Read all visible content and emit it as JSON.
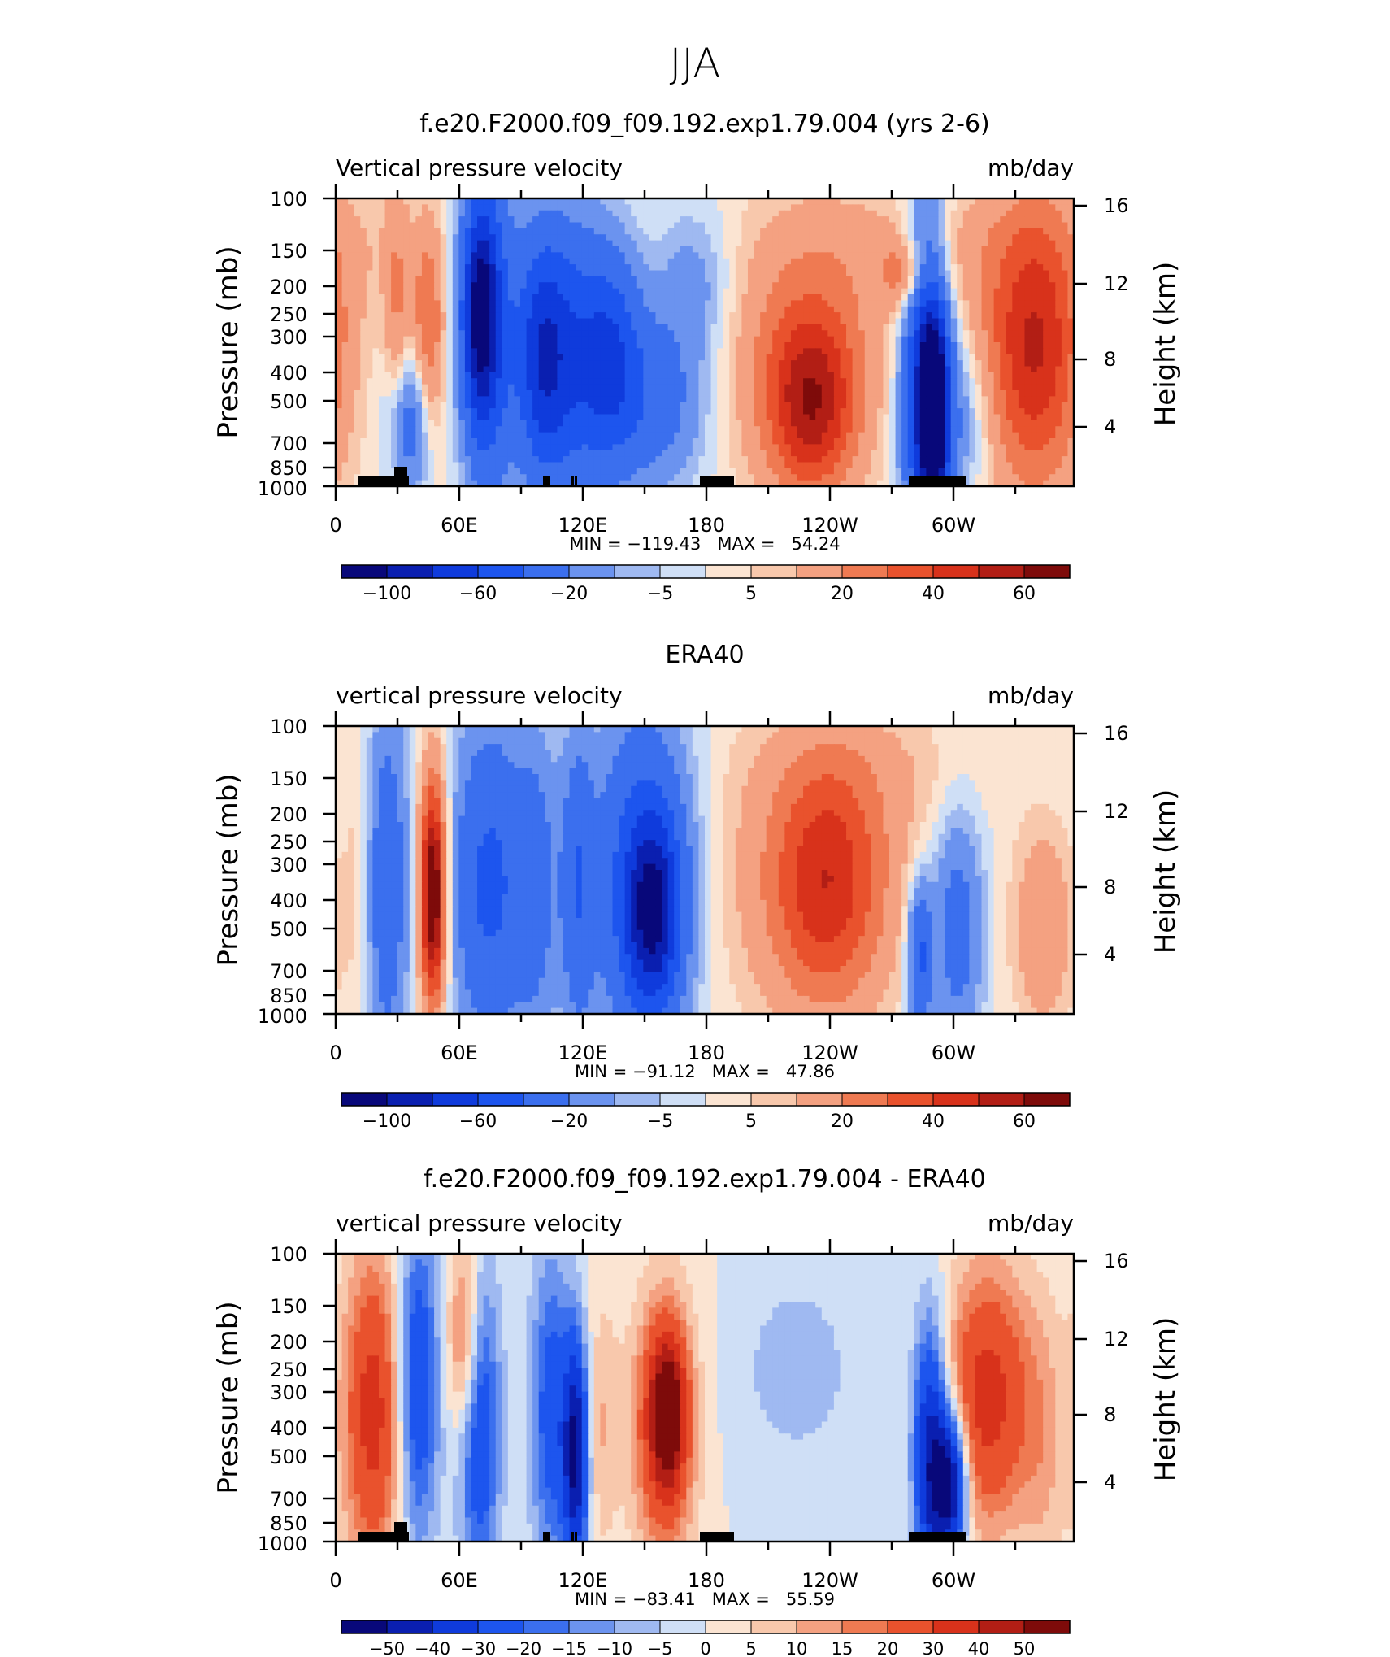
{
  "figure": {
    "main_title": "JJA"
  },
  "panels": [
    {
      "title": "f.e20.F2000.f09_f09.192.exp1.79.004 (yrs 2-6)",
      "left_string": "Vertical pressure velocity",
      "right_string": "mb/day",
      "left_axis_label": "Pressure (mb)",
      "right_axis_label": "Height (km)",
      "min_max_label": "MIN = −119.43   MAX =   54.24",
      "colorbar_labels": [
        "−100",
        "−60",
        "−20",
        "−5",
        "5",
        "20",
        "40",
        "60"
      ],
      "has_topo": true
    },
    {
      "title": "ERA40",
      "left_string": "vertical pressure velocity",
      "right_string": "mb/day",
      "left_axis_label": "Pressure (mb)",
      "right_axis_label": "Height (km)",
      "min_max_label": "MIN = −91.12   MAX =   47.86",
      "colorbar_labels": [
        "−100",
        "−60",
        "−20",
        "−5",
        "5",
        "20",
        "40",
        "60"
      ],
      "has_topo": false
    },
    {
      "title": "f.e20.F2000.f09_f09.192.exp1.79.004 - ERA40",
      "left_string": "vertical pressure velocity",
      "right_string": "mb/day",
      "left_axis_label": "Pressure (mb)",
      "right_axis_label": "Height (km)",
      "min_max_label": "MIN = −83.41   MAX =   55.59",
      "colorbar_labels": [
        "−50",
        "−40",
        "−30",
        "−20",
        "−15",
        "−10",
        "−5",
        "0",
        "5",
        "10",
        "15",
        "20",
        "30",
        "40",
        "50"
      ],
      "has_topo": true
    }
  ],
  "chart_data": [
    {
      "type": "heatmap",
      "title": "f.e20.F2000.f09_f09.192.exp1.79.004 (yrs 2-6)",
      "variable": "Vertical pressure velocity",
      "units": "mb/day",
      "x_ticks": [
        "0",
        "60E",
        "120E",
        "180",
        "120W",
        "60W"
      ],
      "x_range_deg": [
        0,
        360
      ],
      "y_ticks": [
        "100",
        "150",
        "200",
        "250",
        "300",
        "400",
        "500",
        "700",
        "850",
        "1000"
      ],
      "y_ticks_right": [
        "16",
        "12",
        "8",
        "4"
      ],
      "ylim": [
        1000,
        100
      ],
      "y_scale": "log-pressure",
      "min": -119.43,
      "max": 54.24,
      "colorbar_levels": [
        -100,
        -80,
        -60,
        -40,
        -20,
        -10,
        -5,
        0,
        5,
        10,
        20,
        30,
        40,
        50,
        60
      ]
    },
    {
      "type": "heatmap",
      "title": "ERA40",
      "variable": "vertical pressure velocity",
      "units": "mb/day",
      "x_ticks": [
        "0",
        "60E",
        "120E",
        "180",
        "120W",
        "60W"
      ],
      "x_range_deg": [
        0,
        360
      ],
      "y_ticks": [
        "100",
        "150",
        "200",
        "250",
        "300",
        "400",
        "500",
        "700",
        "850",
        "1000"
      ],
      "y_ticks_right": [
        "16",
        "12",
        "8",
        "4"
      ],
      "ylim": [
        1000,
        100
      ],
      "y_scale": "log-pressure",
      "min": -91.12,
      "max": 47.86,
      "colorbar_levels": [
        -100,
        -80,
        -60,
        -40,
        -20,
        -10,
        -5,
        0,
        5,
        10,
        20,
        30,
        40,
        50,
        60
      ]
    },
    {
      "type": "heatmap",
      "title": "f.e20.F2000.f09_f09.192.exp1.79.004 - ERA40",
      "variable": "vertical pressure velocity",
      "units": "mb/day",
      "x_ticks": [
        "0",
        "60E",
        "120E",
        "180",
        "120W",
        "60W"
      ],
      "x_range_deg": [
        0,
        360
      ],
      "y_ticks": [
        "100",
        "150",
        "200",
        "250",
        "300",
        "400",
        "500",
        "700",
        "850",
        "1000"
      ],
      "y_ticks_right": [
        "16",
        "12",
        "8",
        "4"
      ],
      "ylim": [
        1000,
        100
      ],
      "y_scale": "log-pressure",
      "min": -83.41,
      "max": 55.59,
      "colorbar_levels": [
        -50,
        -40,
        -30,
        -20,
        -15,
        -10,
        -5,
        0,
        5,
        10,
        15,
        20,
        30,
        40,
        50
      ]
    }
  ],
  "colors": {
    "palette": [
      "#08087a",
      "#0a1fb0",
      "#0f3bdc",
      "#1d55ee",
      "#3b6fee",
      "#6b93ef",
      "#9fb9f1",
      "#cfdff6",
      "#fbe4d2",
      "#f8c8ac",
      "#f4a181",
      "#ef7a52",
      "#e9522d",
      "#d8321b",
      "#b21e15",
      "#7e0b0a"
    ],
    "topography": "#000000"
  }
}
